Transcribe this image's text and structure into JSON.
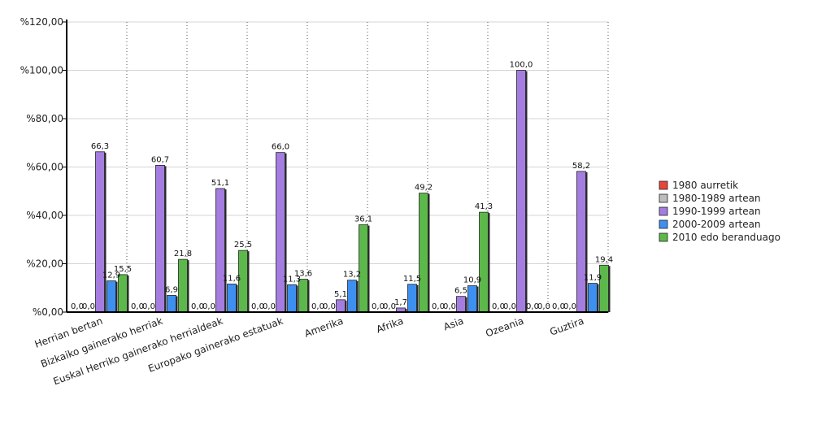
{
  "chart_data": {
    "type": "bar",
    "title": "",
    "xlabel": "",
    "ylabel": "",
    "ylim": [
      0,
      120
    ],
    "yticks": [
      "%0,00",
      "%20,00",
      "%40,00",
      "%60,00",
      "%80,00",
      "%100,00",
      "%120,00"
    ],
    "grid": true,
    "legend_position": "right",
    "categories": [
      "Herrian bertan",
      "Bizkaiko gainerako herriak",
      "Euskal Herriko gainerako herrialdeak",
      "Europako gainerako estatuak",
      "Amerika",
      "Afrika",
      "Asia",
      "Ozeania",
      "Guztira"
    ],
    "series": [
      {
        "name": "1980 aurretik",
        "color": "#e8443a",
        "values": [
          0,
          0,
          0,
          0,
          0,
          0,
          0,
          0,
          0
        ],
        "labels": [
          "0,0",
          "0,0",
          "0,0",
          "0,0",
          "0,0",
          "0,0",
          "0,0",
          "0,0",
          "0,0"
        ]
      },
      {
        "name": "1980-1989 artean",
        "color": "#bdbdbd",
        "values": [
          0,
          0,
          0,
          0,
          0,
          0,
          0,
          0,
          0
        ],
        "labels": [
          "0,0",
          "0,0",
          "0,0",
          "0,0",
          "0,0",
          "0,0",
          "0,0",
          "0,0",
          "0,0"
        ]
      },
      {
        "name": "1990-1999 artean",
        "color": "#a57de0",
        "values": [
          66.3,
          60.7,
          51.1,
          66.0,
          5.1,
          1.7,
          6.5,
          100.0,
          58.2
        ],
        "labels": [
          "66,3",
          "60,7",
          "51,1",
          "66,0",
          "5,1",
          "1,7",
          "6,5",
          "100,0",
          "58,2"
        ]
      },
      {
        "name": "2000-2009 artean",
        "color": "#3d8ff0",
        "values": [
          12.9,
          6.9,
          11.6,
          11.3,
          13.2,
          11.5,
          10.9,
          0,
          11.9
        ],
        "labels": [
          "12,9",
          "6,9",
          "11,6",
          "11,3",
          "13,2",
          "11,5",
          "10,9",
          "0,0",
          "11,9"
        ]
      },
      {
        "name": "2010 edo beranduago",
        "color": "#5cb84a",
        "values": [
          15.5,
          21.8,
          25.5,
          13.6,
          36.1,
          49.2,
          41.3,
          0,
          19.4
        ],
        "labels": [
          "15,5",
          "21,8",
          "25,5",
          "13,6",
          "36,1",
          "49,2",
          "41,3",
          "0,0",
          "19,4"
        ]
      }
    ]
  }
}
